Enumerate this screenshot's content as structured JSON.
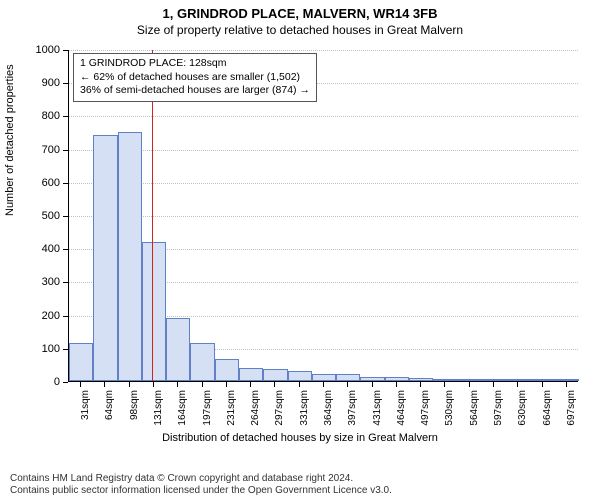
{
  "title_main": "1, GRINDROD PLACE, MALVERN, WR14 3FB",
  "title_sub": "Size of property relative to detached houses in Great Malvern",
  "y_axis": {
    "label": "Number of detached properties",
    "min": 0,
    "max": 1000,
    "ticks": [
      0,
      100,
      200,
      300,
      400,
      500,
      600,
      700,
      800,
      900,
      1000
    ]
  },
  "x_axis": {
    "label": "Distribution of detached houses by size in Great Malvern",
    "ticks": [
      "31sqm",
      "64sqm",
      "98sqm",
      "131sqm",
      "164sqm",
      "197sqm",
      "231sqm",
      "264sqm",
      "297sqm",
      "331sqm",
      "364sqm",
      "397sqm",
      "431sqm",
      "464sqm",
      "497sqm",
      "530sqm",
      "564sqm",
      "597sqm",
      "630sqm",
      "664sqm",
      "697sqm"
    ]
  },
  "bars": {
    "values": [
      115,
      740,
      750,
      420,
      190,
      115,
      65,
      40,
      35,
      30,
      22,
      20,
      12,
      12,
      8,
      5,
      4,
      3,
      3,
      2,
      2
    ],
    "fill_color": "#d6e0f5",
    "border_color": "#6080c8",
    "width_fraction": 1.0
  },
  "marker": {
    "position_index": 2.91,
    "color": "#d62020"
  },
  "info_box": {
    "line1": "1 GRINDROD PLACE: 128sqm",
    "line2": "← 62% of detached houses are smaller (1,502)",
    "line3": "36% of semi-detached houses are larger (874) →"
  },
  "footer": {
    "line1": "Contains HM Land Registry data © Crown copyright and database right 2024.",
    "line2": "Contains public sector information licensed under the Open Government Licence v3.0."
  },
  "colors": {
    "background": "#ffffff",
    "grid": "#c0c0c0",
    "axis": "#000000",
    "text": "#000000"
  },
  "fonts": {
    "title_size_pt": 13,
    "subtitle_size_pt": 12,
    "axis_label_size_pt": 11,
    "tick_label_size_pt": 10,
    "info_box_size_pt": 10.5,
    "footer_size_pt": 10
  }
}
